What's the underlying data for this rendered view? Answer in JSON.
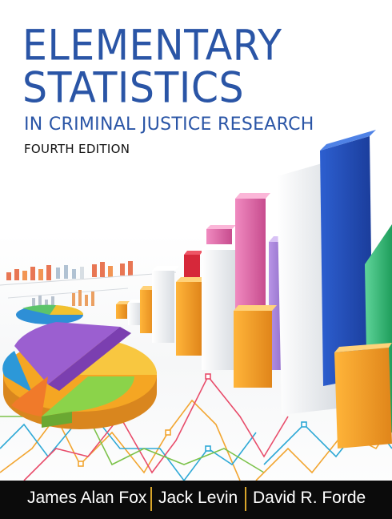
{
  "cover": {
    "title_line_1": "ELEMENTARY",
    "title_line_2": "STATISTICS",
    "subtitle": "IN CRIMINAL JUSTICE RESEARCH",
    "edition": "FOURTH EDITION",
    "authors": [
      "James Alan Fox",
      "Jack Levin",
      "David R. Forde"
    ]
  },
  "colors": {
    "title": "#2a55a6",
    "author_bar": "#0b0b0b",
    "separator": "#d8a52a"
  }
}
